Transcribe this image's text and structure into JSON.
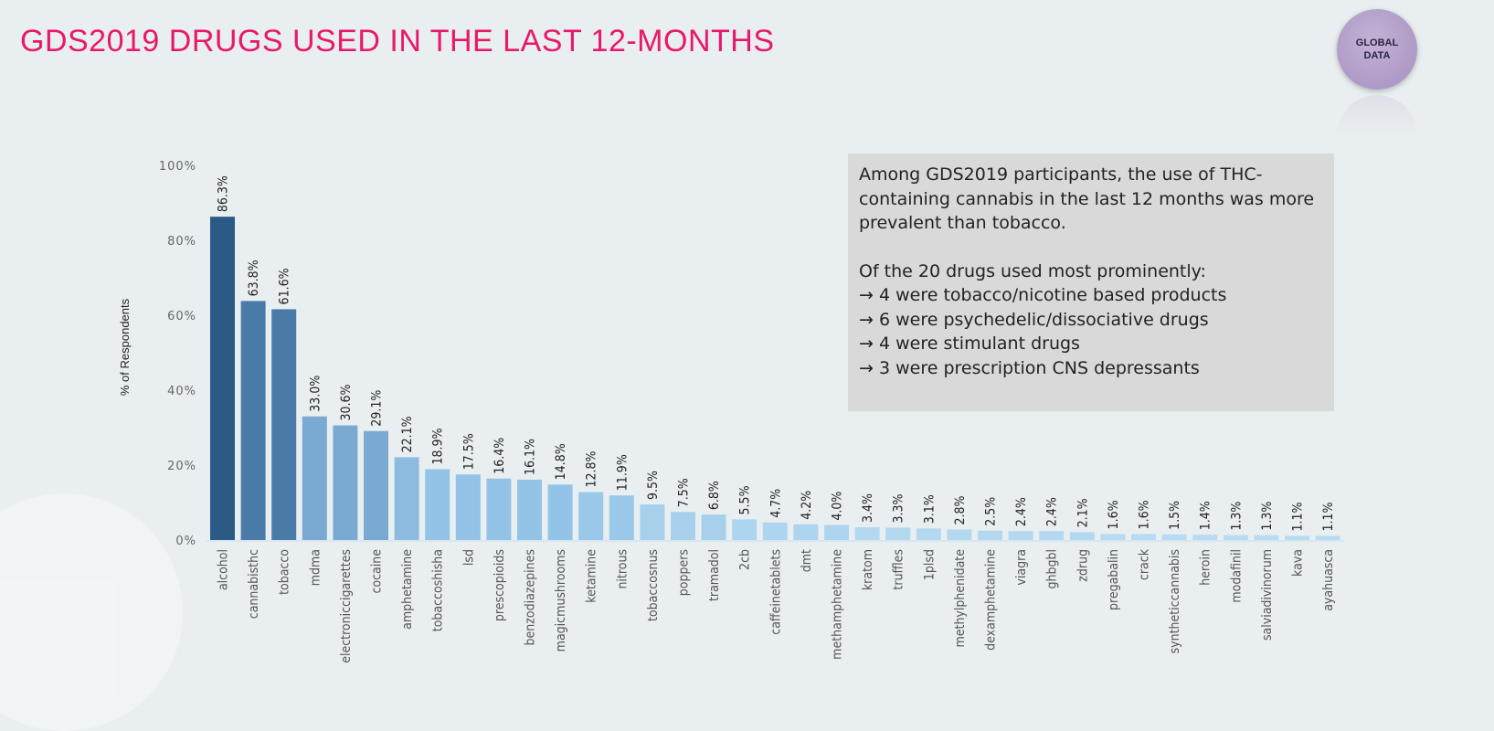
{
  "title": "GDS2019 DRUGS USED IN THE LAST 12-MONTHS",
  "logo": {
    "line1": "GLOBAL",
    "line2": "DATA",
    "color": "#b09cc8"
  },
  "note": {
    "paragraph1": "Among GDS2019 participants, the use of THC-containing cannabis in the last 12 months was more prevalent than tobacco.",
    "intro": "Of the 20 drugs used most prominently:",
    "bullets": [
      "→ 4 were tobacco/nicotine based products",
      "→ 6 were psychedelic/dissociative drugs",
      "→ 4 were stimulant drugs",
      "→ 3 were prescription CNS depressants"
    ]
  },
  "chart_data": {
    "type": "bar",
    "ylabel": "% of Respondents",
    "xlabel": "",
    "ylim": [
      0,
      100
    ],
    "yticks": [
      "0%",
      "20%",
      "40%",
      "60%",
      "80%",
      "100%"
    ],
    "grid": false,
    "categories": [
      "alcohol",
      "cannabisthc",
      "tobacco",
      "mdma",
      "electroniccigarettes",
      "cocaine",
      "amphetamine",
      "tobaccoshisha",
      "lsd",
      "prescopioids",
      "benzodiazepines",
      "magicmushrooms",
      "ketamine",
      "nitrous",
      "tobaccosnus",
      "poppers",
      "tramadol",
      "2cb",
      "caffeinetablets",
      "dmt",
      "methamphetamine",
      "kratom",
      "truffles",
      "1plsd",
      "methylphenidate",
      "dexamphetamine",
      "viagra",
      "ghbgbl",
      "zdrug",
      "pregabalin",
      "crack",
      "syntheticcannabis",
      "heroin",
      "modafinil",
      "salviadivinorum",
      "kava",
      "ayahuasca"
    ],
    "values": [
      86.3,
      63.8,
      61.6,
      33.0,
      30.6,
      29.1,
      22.1,
      18.9,
      17.5,
      16.4,
      16.1,
      14.8,
      12.8,
      11.9,
      9.5,
      7.5,
      6.8,
      5.5,
      4.7,
      4.2,
      4.0,
      3.4,
      3.3,
      3.1,
      2.8,
      2.5,
      2.4,
      2.4,
      2.1,
      1.6,
      1.6,
      1.5,
      1.4,
      1.3,
      1.3,
      1.1,
      1.1
    ],
    "data_labels": [
      "86.3%",
      "63.8%",
      "61.6%",
      "33.0%",
      "30.6%",
      "29.1%",
      "22.1%",
      "18.9%",
      "17.5%",
      "16.4%",
      "16.1%",
      "14.8%",
      "12.8%",
      "11.9%",
      "9.5%",
      "7.5%",
      "6.8%",
      "5.5%",
      "4.7%",
      "4.2%",
      "4.0%",
      "3.4%",
      "3.3%",
      "3.1%",
      "2.8%",
      "2.5%",
      "2.4%",
      "2.4%",
      "2.1%",
      "1.6%",
      "1.6%",
      "1.5%",
      "1.4%",
      "1.3%",
      "1.3%",
      "1.1%",
      "1.1%"
    ],
    "bar_colors": [
      "#2b5a85",
      "#4a7aa8",
      "#4a7aa8",
      "#7aaad2",
      "#7aaad2",
      "#7aaad2",
      "#8dbbe0",
      "#93c3e6",
      "#93c3e6",
      "#93c3e6",
      "#93c3e6",
      "#93c3e6",
      "#9ac8e9",
      "#9ac8e9",
      "#a6d0ec",
      "#a6d0ec",
      "#a6d0ec",
      "#aed5ef",
      "#aed5ef",
      "#aed5ef",
      "#aed5ef",
      "#b3d8f0",
      "#b3d8f0",
      "#b3d8f0",
      "#b3d8f0",
      "#b3d8f0",
      "#b3d8f0",
      "#b3d8f0",
      "#b3d8f0",
      "#b7dbf2",
      "#b7dbf2",
      "#b7dbf2",
      "#b7dbf2",
      "#b7dbf2",
      "#b7dbf2",
      "#b7dbf2",
      "#b7dbf2"
    ]
  }
}
